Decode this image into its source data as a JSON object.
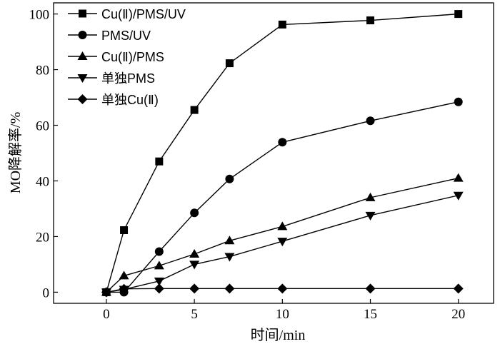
{
  "chart_data": {
    "type": "line",
    "title": "",
    "xlabel": "时间/min",
    "ylabel": "MO降解率/%",
    "xlim": [
      -3,
      22
    ],
    "ylim": [
      -4,
      104
    ],
    "xticks": [
      0,
      5,
      10,
      15,
      20
    ],
    "yticks": [
      0,
      20,
      40,
      60,
      80,
      100
    ],
    "grid": false,
    "legend_position": "top-left",
    "series": [
      {
        "name": "Cu(Ⅱ)/PMS/UV",
        "marker": "square",
        "x": [
          0,
          1,
          3,
          5,
          7,
          10,
          15,
          20
        ],
        "y": [
          0,
          22.3,
          47.0,
          65.5,
          82.3,
          96.2,
          97.7,
          100.0
        ]
      },
      {
        "name": "PMS/UV",
        "marker": "circle",
        "x": [
          0,
          1,
          3,
          5,
          7,
          10,
          15,
          20
        ],
        "y": [
          0,
          0,
          14.6,
          28.5,
          40.7,
          53.9,
          61.6,
          68.4
        ]
      },
      {
        "name": "Cu(Ⅱ)/PMS",
        "marker": "triangle-up",
        "x": [
          0,
          1,
          3,
          5,
          7,
          10,
          15,
          20
        ],
        "y": [
          0,
          5.9,
          9.5,
          13.7,
          18.5,
          23.6,
          34.0,
          41.0
        ]
      },
      {
        "name": "单独PMS",
        "marker": "triangle-down",
        "x": [
          0,
          1,
          3,
          5,
          7,
          10,
          15,
          20
        ],
        "y": [
          0,
          1.0,
          4.0,
          10.0,
          12.8,
          18.3,
          27.6,
          34.8
        ]
      },
      {
        "name": "单独Cu(Ⅱ)",
        "marker": "diamond",
        "x": [
          0,
          1,
          3,
          5,
          7,
          10,
          15,
          20
        ],
        "y": [
          0,
          1.2,
          1.3,
          1.3,
          1.3,
          1.3,
          1.3,
          1.3
        ]
      }
    ]
  }
}
